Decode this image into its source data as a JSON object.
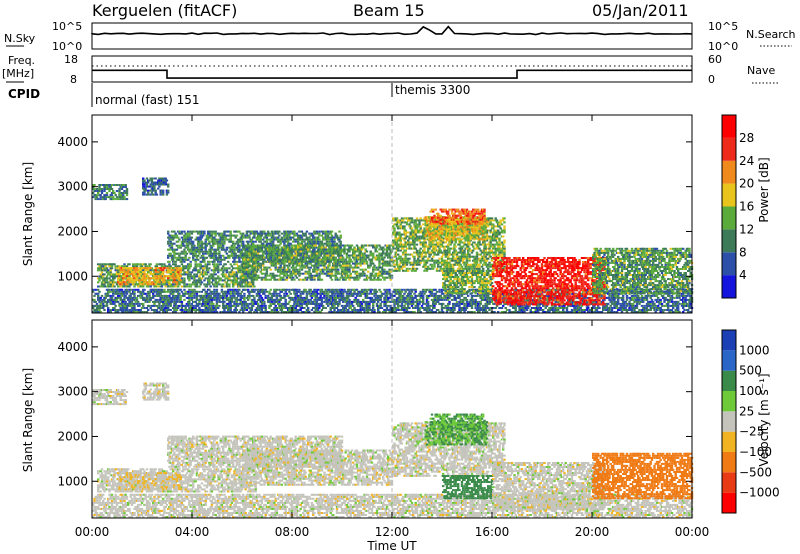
{
  "header": {
    "station": "Kerguelen (fitACF)",
    "beam": "Beam 15",
    "date": "05/Jan/2011"
  },
  "strip": {
    "nsky_label": "N.Sky",
    "nsearch_label": "N.Search",
    "nsky_ticks": [
      "10^5",
      "10^0"
    ],
    "nsearch_ticks": [
      "10^5",
      "10^0"
    ],
    "freq_label_1": "Freq.",
    "freq_label_2": "[MHz]",
    "freq_ticks": [
      "18",
      "8"
    ],
    "nave_label": "Nave",
    "nave_ticks": [
      "60",
      "0"
    ],
    "cpid_label": "CPID",
    "cpid_segments": [
      {
        "label": "normal (fast) 151",
        "start_hour": 0
      },
      {
        "label": "themis 3300",
        "start_hour": 12
      }
    ]
  },
  "power_panel": {
    "ylabel": "Slant Range [km]",
    "yticks": [
      "4000",
      "3000",
      "2000",
      "1000"
    ],
    "colorbar_label": "Power [dB]",
    "colorbar_ticks": [
      "28",
      "24",
      "20",
      "16",
      "12",
      "8",
      "4"
    ],
    "colors": [
      "#1414dc",
      "#2c4fa8",
      "#3d7a5a",
      "#5aaa3c",
      "#e8c41c",
      "#f08a1c",
      "#ee2a1a",
      "#ff0000"
    ]
  },
  "velocity_panel": {
    "ylabel": "Slant Range [km]",
    "yticks": [
      "4000",
      "3000",
      "2000",
      "1000"
    ],
    "colorbar_label": "Velocity [m s⁻¹]",
    "colorbar_ticks": [
      "1000",
      "500",
      "100",
      "25",
      "−25",
      "−100",
      "−500",
      "−1000"
    ],
    "colors": [
      "#1b3fb5",
      "#2a66c8",
      "#3a8a4a",
      "#6fca3a",
      "#c4c4bc",
      "#f0b422",
      "#f07a14",
      "#e83a14",
      "#ff0000"
    ]
  },
  "chart_data": {
    "type": "heatmap",
    "title": "Kerguelen (fitACF)  Beam 15  05/Jan/2011",
    "xlabel": "Time UT",
    "x_ticks": [
      "00:00",
      "04:00",
      "08:00",
      "12:00",
      "16:00",
      "20:00",
      "00:00"
    ],
    "x_range_hours": [
      0,
      24
    ],
    "y_range_km": [
      180,
      4600
    ],
    "y_ticks_km": [
      1000,
      2000,
      3000,
      4000
    ],
    "frequency_mhz": [
      {
        "from_hour": 0,
        "to_hour": 3,
        "value": 12.5
      },
      {
        "from_hour": 3,
        "to_hour": 17,
        "value": 9.5
      },
      {
        "from_hour": 17,
        "to_hour": 24,
        "value": 12.5
      }
    ],
    "power_db_scale": [
      0,
      32
    ],
    "velocity_scale_ms": [
      -1000,
      1000
    ],
    "scatter_regions": [
      {
        "t0": 0.0,
        "t1": 1.4,
        "r0": 2700,
        "r1": 3050,
        "power": 9,
        "vel": 0
      },
      {
        "t0": 2.0,
        "t1": 3.0,
        "r0": 2800,
        "r1": 3200,
        "power": 7,
        "vel": 0
      },
      {
        "t0": 0.0,
        "t1": 24.0,
        "r0": 180,
        "r1": 700,
        "power": 8,
        "vel": 0
      },
      {
        "t0": 0.2,
        "t1": 6.5,
        "r0": 750,
        "r1": 1250,
        "power": 12,
        "vel": 0
      },
      {
        "t0": 1.0,
        "t1": 3.5,
        "r0": 800,
        "r1": 1200,
        "power": 20,
        "vel": -20
      },
      {
        "t0": 3.0,
        "t1": 10.0,
        "r0": 1300,
        "r1": 2000,
        "power": 10,
        "vel": 0
      },
      {
        "t0": 6.0,
        "t1": 12.0,
        "r0": 900,
        "r1": 1700,
        "power": 12,
        "vel": 0
      },
      {
        "t0": 12.0,
        "t1": 16.5,
        "r0": 1100,
        "r1": 2300,
        "power": 14,
        "vel": 0
      },
      {
        "t0": 13.3,
        "t1": 15.8,
        "r0": 1800,
        "r1": 2300,
        "power": 18,
        "vel": 100
      },
      {
        "t0": 13.5,
        "t1": 15.7,
        "r0": 2150,
        "r1": 2500,
        "power": 24,
        "vel": 100
      },
      {
        "t0": 14.0,
        "t1": 16.0,
        "r0": 600,
        "r1": 1100,
        "power": 14,
        "vel": 300
      },
      {
        "t0": 16.0,
        "t1": 20.5,
        "r0": 350,
        "r1": 1400,
        "power": 28,
        "vel": 0
      },
      {
        "t0": 20.0,
        "t1": 24.0,
        "r0": 600,
        "r1": 1600,
        "power": 12,
        "vel": -150
      }
    ]
  }
}
